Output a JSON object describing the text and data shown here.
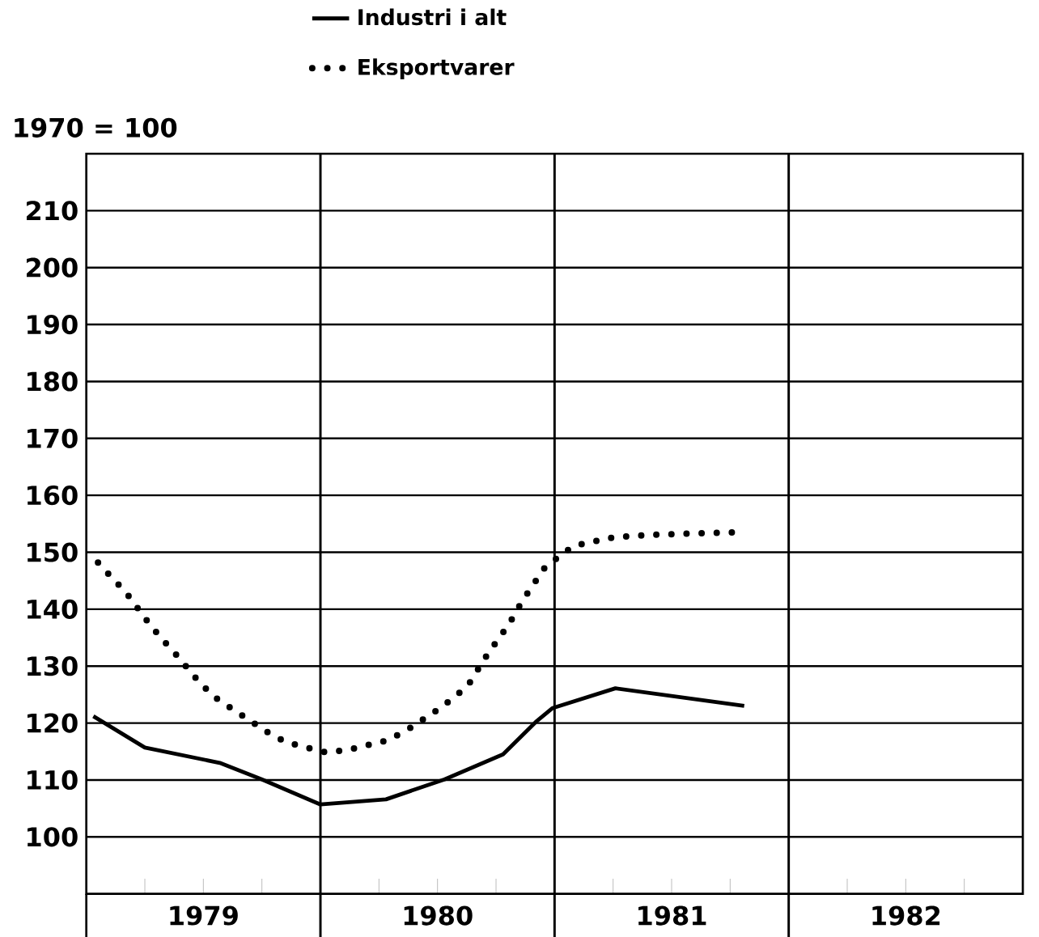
{
  "chart_data": {
    "type": "line",
    "ylabel": "1970 = 100",
    "series": [
      {
        "name": "Industri i alt",
        "color": "#000000",
        "line_style": "solid",
        "x": [
          1979.03,
          1979.25,
          1979.57,
          1979.75,
          1980.0,
          1980.28,
          1980.53,
          1980.78,
          1980.92,
          1980.99,
          1981.26,
          1981.81
        ],
        "values": [
          121.2,
          115.7,
          113.0,
          110.1,
          105.7,
          106.6,
          110.1,
          114.5,
          120.2,
          122.6,
          126.1,
          123.0
        ]
      },
      {
        "name": "Eksportvarer",
        "color": "#000000",
        "line_style": "dotted",
        "x": [
          1979.05,
          1979.11,
          1979.17,
          1979.27,
          1979.32,
          1979.38,
          1979.49,
          1979.56,
          1979.63,
          1979.77,
          1979.85,
          1979.93,
          1980.02,
          1980.11,
          1980.19,
          1980.28,
          1980.36,
          1980.51,
          1980.57,
          1980.63,
          1980.72,
          1980.77,
          1980.82,
          1980.86,
          1980.91,
          1980.96,
          1981.08,
          1981.17,
          1981.25,
          1981.34,
          1981.43,
          1981.52,
          1981.6,
          1981.69,
          1981.77
        ],
        "values": [
          148.2,
          145.5,
          142.9,
          137.4,
          134.9,
          132.2,
          126.8,
          124.2,
          122.3,
          118.5,
          116.7,
          115.8,
          114.9,
          115.2,
          116.0,
          116.9,
          118.5,
          122.6,
          124.5,
          126.6,
          132.5,
          135.3,
          138.4,
          141.3,
          144.4,
          147.4,
          151.1,
          151.9,
          152.6,
          152.9,
          153.1,
          153.2,
          153.3,
          153.4,
          153.5
        ]
      }
    ],
    "xlim": [
      1979,
      1983
    ],
    "ylim": [
      90,
      220
    ],
    "xticks": [
      {
        "value": 1979.25,
        "label": null
      },
      {
        "value": 1979.5,
        "label": "1979"
      },
      {
        "value": 1979.75,
        "label": null
      },
      {
        "value": 1980.25,
        "label": null
      },
      {
        "value": 1980.5,
        "label": "1980"
      },
      {
        "value": 1980.75,
        "label": null
      },
      {
        "value": 1981.25,
        "label": null
      },
      {
        "value": 1981.5,
        "label": "1981"
      },
      {
        "value": 1981.75,
        "label": null
      },
      {
        "value": 1982.25,
        "label": null
      },
      {
        "value": 1982.5,
        "label": "1982"
      },
      {
        "value": 1982.75,
        "label": null
      }
    ],
    "yticks": [
      100,
      110,
      120,
      130,
      140,
      150,
      160,
      170,
      180,
      190,
      200,
      210
    ],
    "ref_lines": [
      {
        "axis": "x",
        "value": 1980
      },
      {
        "axis": "x",
        "value": 1981
      },
      {
        "axis": "x",
        "value": 1982
      }
    ],
    "grid": "y",
    "legend": "top"
  }
}
